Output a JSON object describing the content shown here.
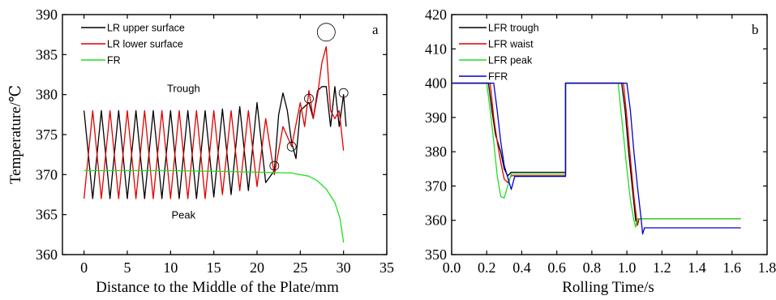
{
  "chart_data": [
    {
      "type": "line",
      "panel_letter": "a",
      "xlabel": "Distance to the Middle of the Plate/mm",
      "ylabel": "Temperature/℃",
      "xlim": [
        -2.5,
        35
      ],
      "ylim": [
        360,
        390
      ],
      "xticks": [
        "0",
        "5",
        "10",
        "15",
        "20",
        "25",
        "30",
        "35"
      ],
      "yticks": [
        "360",
        "365",
        "370",
        "375",
        "380",
        "385",
        "390"
      ],
      "legend_position": "top-left",
      "annotations": [
        {
          "text": "Trough",
          "x": 11.5,
          "y": 380.3
        },
        {
          "text": "Peak",
          "x": 11.5,
          "y": 364.5
        }
      ],
      "markers": [
        {
          "x": 22.0,
          "y": 371.1,
          "kind": "small"
        },
        {
          "x": 24.0,
          "y": 373.5,
          "kind": "small"
        },
        {
          "x": 26.0,
          "y": 379.5,
          "kind": "small"
        },
        {
          "x": 28.0,
          "y": 387.8,
          "kind": "large"
        },
        {
          "x": 30.0,
          "y": 380.2,
          "kind": "small"
        }
      ],
      "series": [
        {
          "name": "LR upper surface",
          "color": "#000000",
          "points": [
            [
              0,
              378
            ],
            [
              1,
              367
            ],
            [
              2,
              378
            ],
            [
              3,
              367
            ],
            [
              4,
              378
            ],
            [
              5,
              367
            ],
            [
              6,
              378
            ],
            [
              7,
              367
            ],
            [
              8,
              378
            ],
            [
              9,
              367
            ],
            [
              10,
              378
            ],
            [
              11,
              367
            ],
            [
              12,
              378
            ],
            [
              13,
              367
            ],
            [
              14,
              378
            ],
            [
              15,
              367.2
            ],
            [
              16,
              378.2
            ],
            [
              17,
              367.5
            ],
            [
              18,
              378.5
            ],
            [
              19,
              368
            ],
            [
              20,
              379
            ],
            [
              21,
              369
            ],
            [
              22,
              370.5
            ],
            [
              22.5,
              377.5
            ],
            [
              23,
              380.2
            ],
            [
              23.5,
              378
            ],
            [
              24,
              374
            ],
            [
              24.5,
              372
            ],
            [
              25,
              378
            ],
            [
              25.5,
              378.5
            ],
            [
              26,
              379
            ],
            [
              26.5,
              377
            ],
            [
              27,
              380.5
            ],
            [
              27.5,
              381
            ],
            [
              28,
              381
            ],
            [
              28.5,
              376
            ],
            [
              29,
              381
            ],
            [
              29.5,
              376
            ],
            [
              30,
              380
            ],
            [
              30.3,
              376
            ]
          ]
        },
        {
          "name": "LR lower surface",
          "color": "#e00000",
          "points": [
            [
              0,
              367
            ],
            [
              1,
              378
            ],
            [
              2,
              367
            ],
            [
              3,
              378
            ],
            [
              4,
              367
            ],
            [
              5,
              378
            ],
            [
              6,
              367
            ],
            [
              7,
              378
            ],
            [
              8,
              367
            ],
            [
              9,
              378
            ],
            [
              10,
              367
            ],
            [
              11,
              378
            ],
            [
              12,
              367
            ],
            [
              13,
              378
            ],
            [
              14,
              367
            ],
            [
              15,
              378
            ],
            [
              16,
              367.5
            ],
            [
              17,
              378
            ],
            [
              18,
              368
            ],
            [
              19,
              378
            ],
            [
              20,
              368.5
            ],
            [
              21,
              377
            ],
            [
              22,
              370
            ],
            [
              23,
              376
            ],
            [
              24,
              373.5
            ],
            [
              25,
              379
            ],
            [
              25.5,
              376
            ],
            [
              26,
              380.5
            ],
            [
              26.5,
              377
            ],
            [
              27,
              380
            ],
            [
              27.5,
              384
            ],
            [
              28,
              386
            ],
            [
              28.5,
              378
            ],
            [
              29,
              377
            ],
            [
              29.5,
              378
            ],
            [
              30,
              373
            ]
          ]
        },
        {
          "name": "FR",
          "color": "#22dd22",
          "points": [
            [
              0,
              370.5
            ],
            [
              10,
              370.5
            ],
            [
              16,
              370.4
            ],
            [
              20,
              370.3
            ],
            [
              24,
              370.2
            ],
            [
              26,
              369.8
            ],
            [
              27,
              369.2
            ],
            [
              28,
              368.2
            ],
            [
              29,
              366.5
            ],
            [
              29.6,
              364.5
            ],
            [
              30,
              361.5
            ]
          ]
        }
      ]
    },
    {
      "type": "line",
      "panel_letter": "b",
      "xlabel": "Rolling Time/s",
      "ylabel": "",
      "xlim": [
        0.0,
        1.8
      ],
      "ylim": [
        350,
        420
      ],
      "xticks": [
        "0.0",
        "0.2",
        "0.4",
        "0.6",
        "0.8",
        "1.0",
        "1.2",
        "1.4",
        "1.6",
        "1.8"
      ],
      "yticks": [
        "350",
        "360",
        "370",
        "380",
        "390",
        "400",
        "410",
        "420"
      ],
      "legend_position": "top-left",
      "series": [
        {
          "name": "LFR trough",
          "color": "#000000",
          "points": [
            [
              0,
              400
            ],
            [
              0.21,
              400
            ],
            [
              0.23,
              392
            ],
            [
              0.25,
              385
            ],
            [
              0.28,
              380
            ],
            [
              0.3,
              375
            ],
            [
              0.32,
              373
            ],
            [
              0.34,
              374
            ],
            [
              0.65,
              374
            ],
            [
              0.65,
              400
            ],
            [
              0.97,
              400
            ],
            [
              0.99,
              392
            ],
            [
              1.01,
              380
            ],
            [
              1.03,
              370
            ],
            [
              1.05,
              360
            ],
            [
              1.06,
              359
            ],
            [
              1.07,
              360.5
            ],
            [
              1.65,
              360.5
            ]
          ]
        },
        {
          "name": "LFR waist",
          "color": "#e00000",
          "points": [
            [
              0,
              400
            ],
            [
              0.22,
              400
            ],
            [
              0.24,
              390
            ],
            [
              0.26,
              383
            ],
            [
              0.28,
              377
            ],
            [
              0.3,
              372
            ],
            [
              0.32,
              371
            ],
            [
              0.34,
              373
            ],
            [
              0.65,
              373
            ],
            [
              0.65,
              400
            ],
            [
              0.98,
              400
            ],
            [
              1.0,
              390
            ],
            [
              1.02,
              378
            ],
            [
              1.04,
              367
            ],
            [
              1.06,
              358.5
            ],
            [
              1.07,
              360.5
            ],
            [
              1.65,
              360.5
            ]
          ]
        },
        {
          "name": "LFR peak",
          "color": "#22dd22",
          "points": [
            [
              0,
              400
            ],
            [
              0.2,
              400
            ],
            [
              0.22,
              392
            ],
            [
              0.24,
              383
            ],
            [
              0.26,
              373
            ],
            [
              0.28,
              367
            ],
            [
              0.3,
              366.5
            ],
            [
              0.32,
              370
            ],
            [
              0.34,
              373.5
            ],
            [
              0.65,
              373.5
            ],
            [
              0.65,
              400
            ],
            [
              0.95,
              400
            ],
            [
              0.97,
              390
            ],
            [
              1.0,
              375
            ],
            [
              1.02,
              366
            ],
            [
              1.04,
              360
            ],
            [
              1.05,
              358
            ],
            [
              1.06,
              360.5
            ],
            [
              1.65,
              360.5
            ]
          ]
        },
        {
          "name": "FFR",
          "color": "#0000cc",
          "points": [
            [
              0,
              400
            ],
            [
              0.24,
              400
            ],
            [
              0.26,
              392
            ],
            [
              0.28,
              383
            ],
            [
              0.3,
              376
            ],
            [
              0.32,
              372.5
            ],
            [
              0.34,
              369
            ],
            [
              0.36,
              372.8
            ],
            [
              0.65,
              372.8
            ],
            [
              0.65,
              400
            ],
            [
              1.0,
              400
            ],
            [
              1.02,
              392
            ],
            [
              1.04,
              380
            ],
            [
              1.06,
              370
            ],
            [
              1.08,
              361
            ],
            [
              1.09,
              356
            ],
            [
              1.1,
              357.8
            ],
            [
              1.65,
              357.8
            ]
          ]
        }
      ]
    }
  ]
}
